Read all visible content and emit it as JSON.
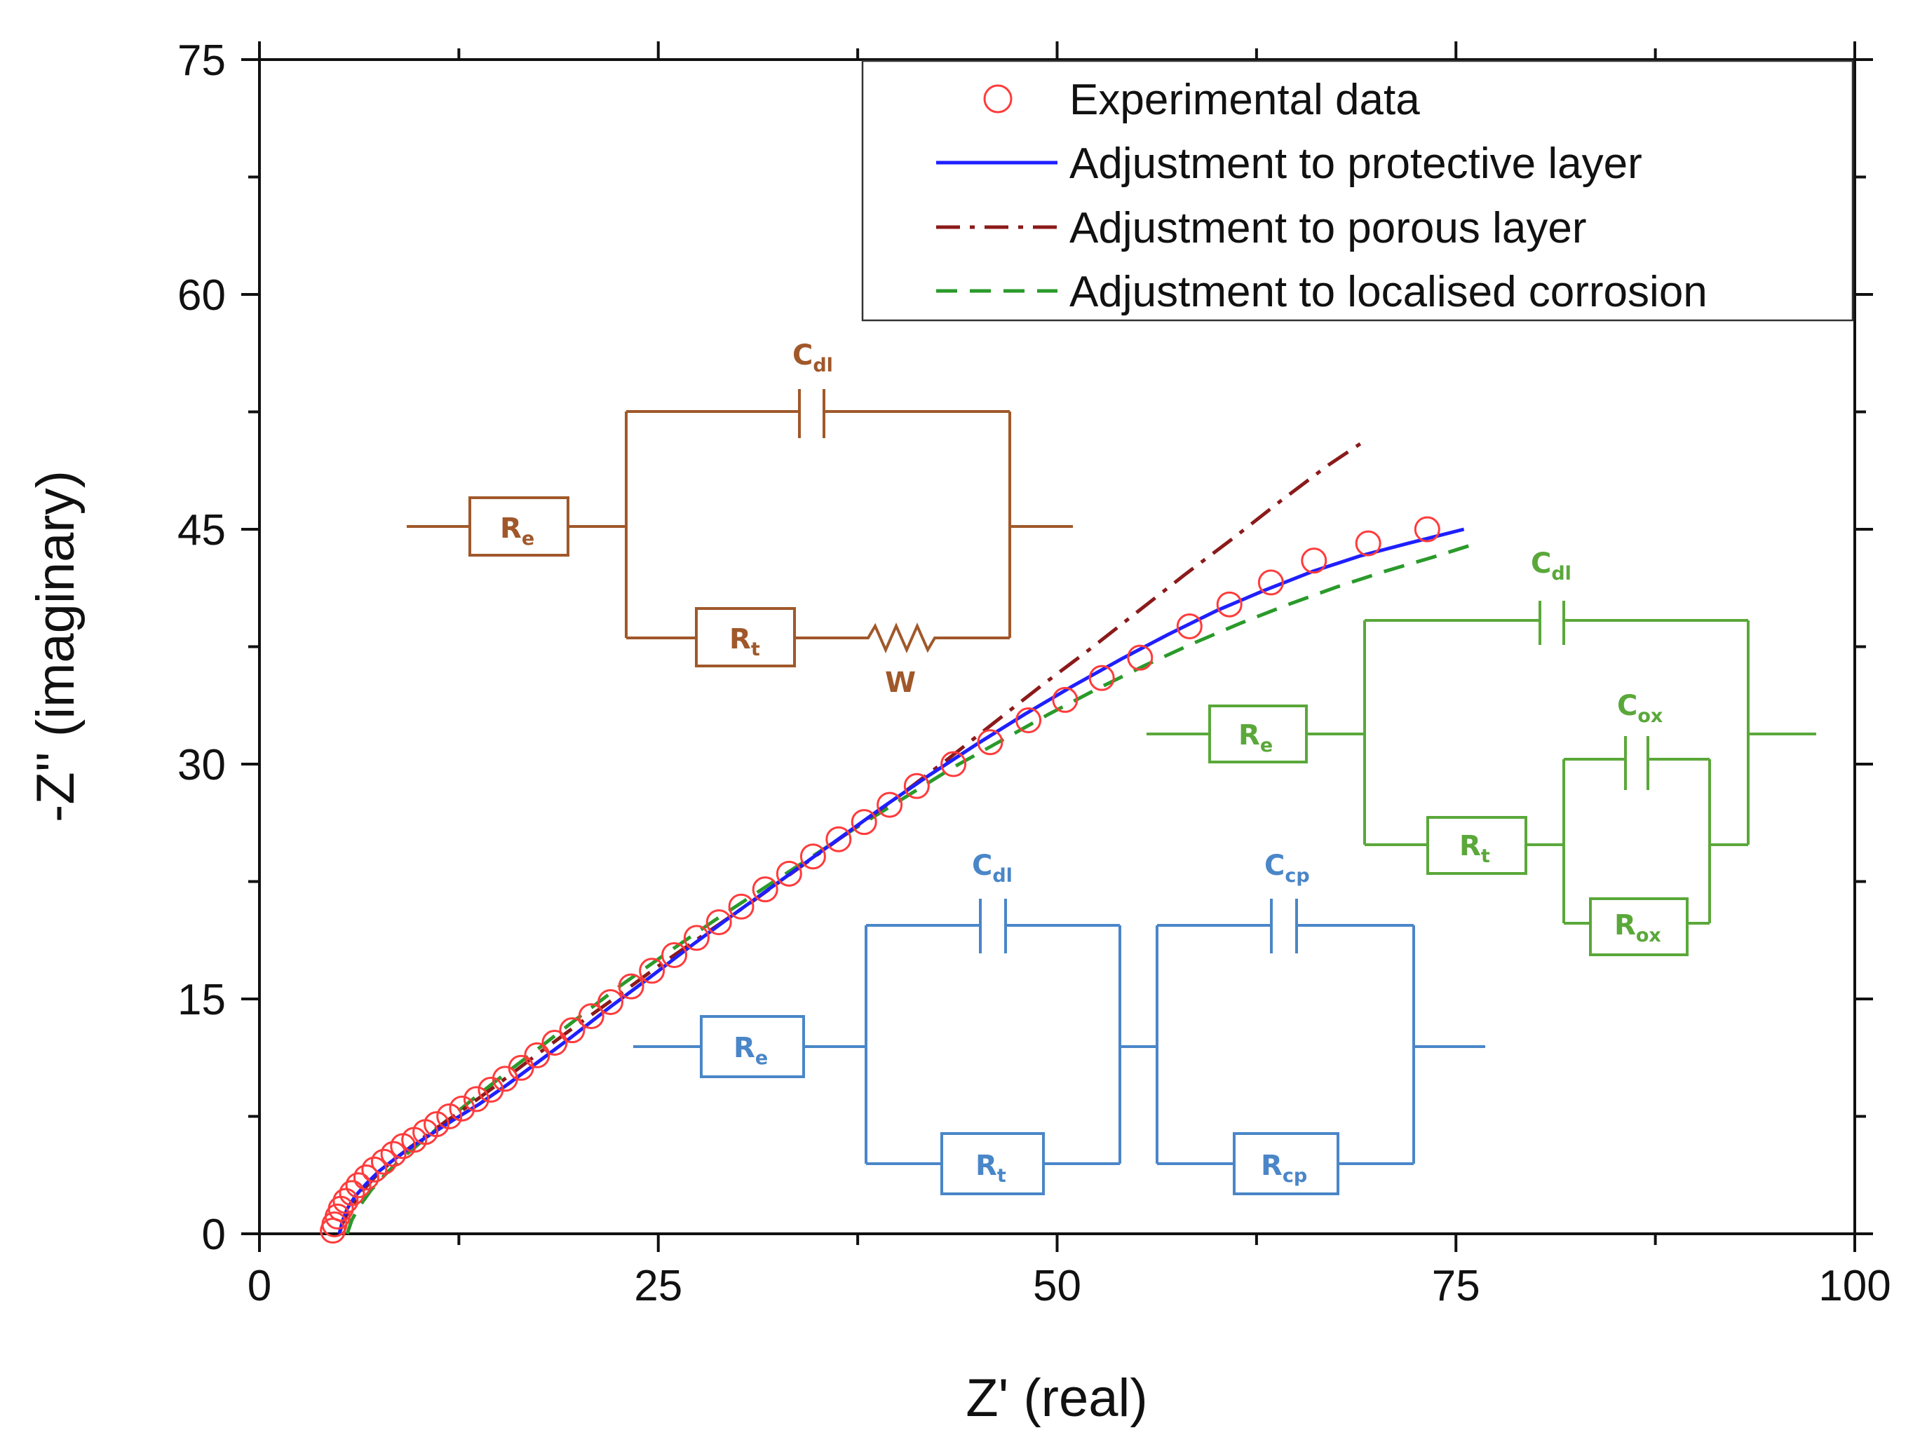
{
  "chart_data": {
    "type": "scatter",
    "title": "",
    "xlabel": "Z' (real)",
    "ylabel": "-Z'' (imaginary)",
    "xlim": [
      0,
      100
    ],
    "ylim": [
      0,
      75
    ],
    "x_ticks": [
      0,
      25,
      50,
      75,
      100
    ],
    "x_tick_labels": [
      "0",
      "25",
      "50",
      "75",
      "100"
    ],
    "y_ticks": [
      0,
      15,
      30,
      45,
      60,
      75
    ],
    "y_tick_labels": [
      "0",
      "15",
      "30",
      "45",
      "60",
      "75"
    ],
    "grid": false,
    "legend_position": "top-right",
    "series": [
      {
        "name": "Experimental data",
        "style": "open-circle",
        "color": "#ff3b3b",
        "x": [
          4.6,
          4.7,
          4.9,
          5.1,
          5.4,
          5.8,
          6.2,
          6.7,
          7.2,
          7.8,
          8.4,
          9.0,
          9.7,
          10.4,
          11.1,
          11.9,
          12.7,
          13.6,
          14.5,
          15.4,
          16.4,
          17.4,
          18.5,
          19.6,
          20.8,
          22.0,
          23.3,
          24.6,
          26.0,
          27.4,
          28.8,
          30.2,
          31.7,
          33.2,
          34.7,
          36.3,
          37.9,
          39.5,
          41.2,
          43.5,
          45.8,
          48.2,
          50.5,
          52.8,
          55.2,
          58.3,
          60.8,
          63.4,
          66.1,
          69.5,
          73.2
        ],
        "y": [
          0.2,
          0.6,
          1.1,
          1.6,
          2.1,
          2.6,
          3.1,
          3.6,
          4.1,
          4.6,
          5.1,
          5.6,
          6.0,
          6.5,
          7.0,
          7.5,
          8.0,
          8.6,
          9.2,
          9.9,
          10.6,
          11.4,
          12.2,
          13.0,
          13.9,
          14.8,
          15.8,
          16.8,
          17.8,
          18.9,
          19.9,
          20.9,
          22.0,
          23.0,
          24.1,
          25.2,
          26.3,
          27.4,
          28.6,
          30.0,
          31.4,
          32.8,
          34.1,
          35.5,
          36.8,
          38.8,
          40.2,
          41.6,
          43.0,
          44.1,
          45.0
        ]
      },
      {
        "name": "Adjustment to protective layer",
        "style": "solid",
        "color": "#1f1fff",
        "x": [
          5.0,
          5.2,
          5.5,
          6.0,
          6.7,
          7.5,
          8.5,
          9.6,
          10.8,
          12.2,
          13.8,
          15.5,
          17.5,
          19.6,
          22.0,
          24.5,
          27.2,
          30.0,
          33.0,
          36.0,
          39.0,
          42.0,
          45.0,
          48.0,
          51.0,
          54.0,
          57.0,
          60.0,
          63.0,
          66.0,
          69.0,
          72.0,
          75.5
        ],
        "y": [
          0.0,
          0.8,
          1.6,
          2.4,
          3.2,
          4.0,
          4.8,
          5.6,
          6.4,
          7.3,
          8.3,
          9.5,
          11.0,
          12.6,
          14.5,
          16.4,
          18.5,
          20.6,
          22.8,
          25.0,
          27.2,
          29.3,
          31.3,
          33.2,
          35.0,
          36.7,
          38.3,
          39.8,
          41.1,
          42.3,
          43.3,
          44.1,
          45.0
        ]
      },
      {
        "name": "Adjustment to porous layer",
        "style": "dash-dot",
        "color": "#8b1a1a",
        "x": [
          5.0,
          5.3,
          5.8,
          6.5,
          7.4,
          8.5,
          9.8,
          11.3,
          13.0,
          15.0,
          17.2,
          19.6,
          22.2,
          25.0,
          28.0,
          31.0,
          34.0,
          37.0,
          40.0,
          43.0,
          46.0,
          49.0,
          52.0,
          55.0,
          58.0,
          61.0,
          64.0,
          67.0,
          69.5
        ],
        "y": [
          0.0,
          0.9,
          1.8,
          2.8,
          3.8,
          4.8,
          5.8,
          6.9,
          8.1,
          9.6,
          11.3,
          13.1,
          15.0,
          17.1,
          19.2,
          21.3,
          23.5,
          25.7,
          27.9,
          30.2,
          32.6,
          35.0,
          37.3,
          39.7,
          42.1,
          44.4,
          46.8,
          49.1,
          50.8
        ]
      },
      {
        "name": "Adjustment to localised corrosion",
        "style": "dashed",
        "color": "#2a9a2a",
        "x": [
          5.5,
          5.8,
          6.3,
          7.0,
          7.9,
          9.0,
          10.3,
          11.8,
          13.5,
          15.5,
          17.7,
          20.1,
          22.7,
          25.5,
          28.5,
          31.5,
          34.5,
          37.5,
          40.5,
          43.5,
          46.5,
          49.5,
          52.5,
          55.5,
          58.5,
          61.5,
          64.5,
          67.5,
          70.5,
          73.5,
          76.0
        ],
        "y": [
          0.0,
          0.9,
          1.8,
          2.8,
          3.8,
          4.9,
          6.0,
          7.3,
          8.7,
          10.3,
          12.0,
          13.9,
          15.9,
          17.9,
          20.0,
          22.0,
          24.0,
          26.0,
          27.9,
          29.8,
          31.5,
          33.2,
          34.8,
          36.3,
          37.7,
          39.0,
          40.2,
          41.3,
          42.3,
          43.2,
          44.0
        ]
      }
    ]
  },
  "circuits": {
    "brown": {
      "color": "#a0582a",
      "cap_label": "C",
      "cap_sub": "dl",
      "re_label": "R",
      "re_sub": "e",
      "rt_label": "R",
      "rt_sub": "t",
      "w_label": "W"
    },
    "green": {
      "color": "#5aa83a",
      "cdl_label": "C",
      "cdl_sub": "dl",
      "cox_label": "C",
      "cox_sub": "ox",
      "re_label": "R",
      "re_sub": "e",
      "rt_label": "R",
      "rt_sub": "t",
      "rox_label": "R",
      "rox_sub": "ox"
    },
    "blue": {
      "color": "#4a86c8",
      "cdl_label": "C",
      "cdl_sub": "dl",
      "ccp_label": "C",
      "ccp_sub": "cp",
      "re_label": "R",
      "re_sub": "e",
      "rt_label": "R",
      "rt_sub": "t",
      "rcp_label": "R",
      "rcp_sub": "cp"
    }
  }
}
